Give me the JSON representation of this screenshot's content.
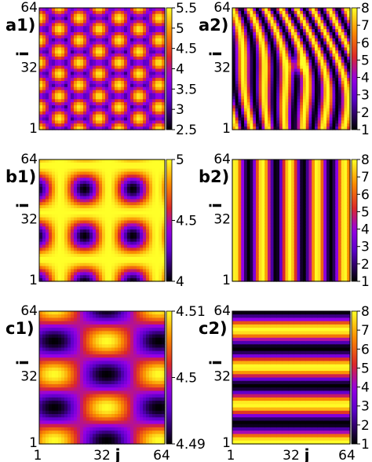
{
  "chart_data": [
    {
      "panel_label": "a1)",
      "type": "heatmap",
      "pattern": "hexagonal spots",
      "ylabel": "i",
      "y_ticks": [
        "64",
        "32",
        "1"
      ],
      "x_ticks": [],
      "colorbar_ticks": [
        "5.5",
        "5",
        "4.5",
        "4",
        "3.5",
        "3",
        "2.5"
      ],
      "zlim": [
        2.5,
        5.5
      ]
    },
    {
      "panel_label": "a2)",
      "type": "heatmap",
      "pattern": "labyrinthine stripes",
      "ylabel": "i",
      "y_ticks": [
        "64",
        "32",
        "1"
      ],
      "x_ticks": [],
      "colorbar_ticks": [
        "8",
        "7",
        "6",
        "5",
        "4",
        "3",
        "2",
        "1"
      ],
      "zlim": [
        1,
        8
      ]
    },
    {
      "panel_label": "b1)",
      "type": "heatmap",
      "pattern": "square lattice of spots",
      "ylabel": "i",
      "y_ticks": [
        "64",
        "32",
        "1"
      ],
      "x_ticks": [],
      "colorbar_ticks": [
        "5",
        "4.5",
        "4"
      ],
      "zlim": [
        4,
        5
      ]
    },
    {
      "panel_label": "b2)",
      "type": "heatmap",
      "pattern": "vertical stripes",
      "ylabel": "i",
      "y_ticks": [
        "64",
        "32",
        "1"
      ],
      "x_ticks": [],
      "colorbar_ticks": [
        "8",
        "7",
        "6",
        "5",
        "4",
        "3",
        "2",
        "1"
      ],
      "zlim": [
        1,
        8
      ]
    },
    {
      "panel_label": "c1)",
      "type": "heatmap",
      "pattern": "elongated spots",
      "ylabel": "i",
      "xlabel": "j",
      "y_ticks": [
        "64",
        "32",
        "1"
      ],
      "x_ticks": [
        "1",
        "32",
        "64"
      ],
      "colorbar_ticks": [
        "4.51",
        "4.5",
        "4.49"
      ],
      "zlim": [
        4.49,
        4.51
      ]
    },
    {
      "panel_label": "c2)",
      "type": "heatmap",
      "pattern": "horizontal stripes",
      "ylabel": "i",
      "xlabel": "j",
      "y_ticks": [
        "64",
        "32",
        "1"
      ],
      "x_ticks": [
        "1",
        "32",
        "64"
      ],
      "colorbar_ticks": [
        "8",
        "7",
        "6",
        "5",
        "4",
        "3",
        "2",
        "1"
      ],
      "zlim": [
        1,
        8
      ]
    }
  ]
}
